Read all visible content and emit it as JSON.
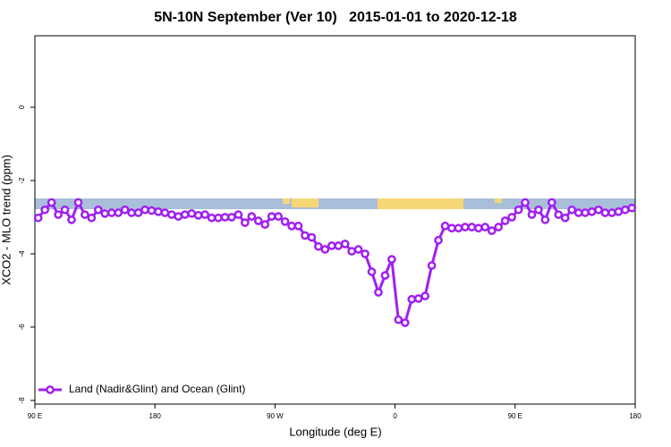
{
  "chart_data": {
    "type": "line",
    "title": "5N-10N September (Ver 10)   2015-01-01 to 2020-12-18",
    "xlabel": "Longitude (deg E)",
    "ylabel": "XCO2 - MLO trend (ppm)",
    "xlim": [
      90,
      540
    ],
    "xticks": [
      {
        "value": 90,
        "label": "90 E"
      },
      {
        "value": 180,
        "label": "180"
      },
      {
        "value": 270,
        "label": "90 W"
      },
      {
        "value": 360,
        "label": "0"
      },
      {
        "value": 450,
        "label": "90 E"
      },
      {
        "value": 540,
        "label": "180"
      }
    ],
    "ylim": [
      -8.1,
      1.95
    ],
    "yticks": [
      0,
      -2,
      -4,
      -6,
      -8
    ],
    "legend": "bottom-left",
    "x": [
      92.5,
      97.5,
      102.5,
      107.5,
      112.5,
      117.5,
      122.5,
      127.5,
      132.5,
      137.5,
      142.5,
      147.5,
      152.5,
      157.5,
      162.5,
      167.5,
      172.5,
      177.5,
      182.5,
      187.5,
      192.5,
      197.5,
      202.5,
      207.5,
      212.5,
      217.5,
      222.5,
      227.5,
      232.5,
      237.5,
      242.5,
      247.5,
      252.5,
      257.5,
      262.5,
      267.5,
      272.5,
      277.5,
      282.5,
      287.5,
      292.5,
      297.5,
      302.5,
      307.5,
      312.5,
      317.5,
      322.5,
      327.5,
      332.5,
      337.5,
      342.5,
      347.5,
      352.5,
      357.5,
      362.5,
      367.5,
      372.5,
      377.5,
      382.5,
      387.5,
      392.5,
      397.5,
      402.5,
      407.5,
      412.5,
      417.5,
      422.5,
      427.5,
      432.5,
      437.5,
      442.5,
      447.5,
      452.5,
      457.5,
      462.5,
      467.5,
      472.5,
      477.5,
      482.5,
      487.5,
      492.5,
      497.5,
      502.5,
      507.5,
      512.5,
      517.5,
      522.5,
      527.5,
      532.5,
      537.5
    ],
    "series": [
      {
        "name": "Land (Nadir&Glint) and Ocean (Glint)",
        "color": "#a020f0",
        "values": [
          -3.02,
          -2.8,
          -2.6,
          -2.93,
          -2.8,
          -3.07,
          -2.6,
          -2.93,
          -3.02,
          -2.8,
          -2.9,
          -2.88,
          -2.88,
          -2.8,
          -2.88,
          -2.88,
          -2.8,
          -2.82,
          -2.85,
          -2.88,
          -2.93,
          -2.98,
          -2.93,
          -2.9,
          -2.95,
          -2.93,
          -3.02,
          -3.02,
          -3.0,
          -3.0,
          -2.93,
          -3.15,
          -2.98,
          -3.1,
          -3.2,
          -2.98,
          -2.98,
          -3.12,
          -3.24,
          -3.24,
          -3.5,
          -3.55,
          -3.8,
          -3.88,
          -3.78,
          -3.78,
          -3.73,
          -3.93,
          -3.88,
          -4.0,
          -4.49,
          -5.05,
          -4.59,
          -4.15,
          -5.8,
          -5.88,
          -5.24,
          -5.22,
          -5.15,
          -4.32,
          -3.63,
          -3.24,
          -3.3,
          -3.3,
          -3.27,
          -3.27,
          -3.3,
          -3.27,
          -3.37,
          -3.27,
          -3.1,
          -3.0,
          -2.8,
          -2.6,
          -2.93,
          -2.8,
          -3.07,
          -2.6,
          -2.93,
          -3.02,
          -2.8,
          -2.88,
          -2.88,
          -2.85,
          -2.8,
          -2.88,
          -2.88,
          -2.85,
          -2.8,
          -2.75
        ]
      }
    ]
  }
}
